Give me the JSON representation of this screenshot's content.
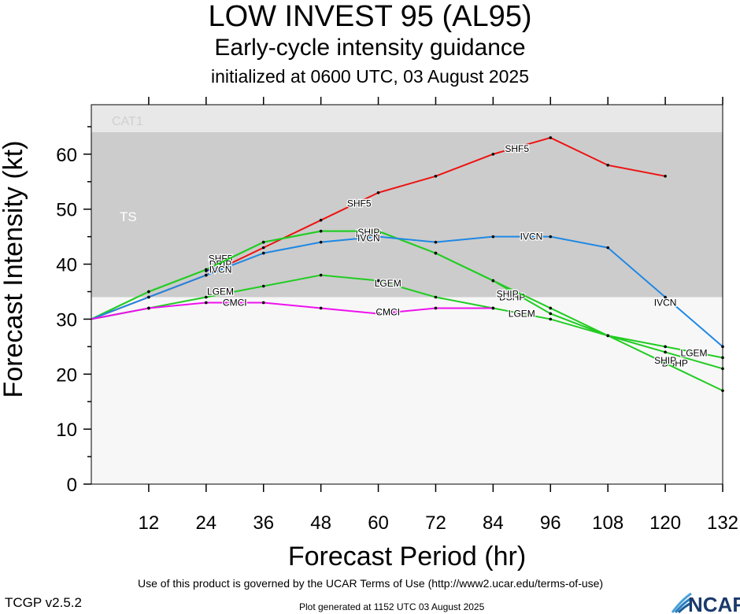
{
  "header": {
    "title": "LOW INVEST 95 (AL95)",
    "subtitle": "Early-cycle intensity guidance",
    "init": "initialized at 0600 UTC, 03 August 2025"
  },
  "footer": {
    "terms": "Use of this product is governed by the UCAR Terms of Use (http://www2.ucar.edu/terms-of-use)",
    "version": "TCGP v2.5.2",
    "generated": "Plot generated at 1152 UTC   03 August 2025",
    "logo_text": "NCAR"
  },
  "chart_data": {
    "type": "line",
    "xlabel": "Forecast Period (hr)",
    "ylabel": "Forecast Intensity (kt)",
    "xlim": [
      0,
      132
    ],
    "ylim": [
      0,
      69
    ],
    "x_ticks": [
      12,
      24,
      36,
      48,
      60,
      72,
      84,
      96,
      108,
      120,
      132
    ],
    "y_ticks": [
      0,
      10,
      20,
      30,
      40,
      50,
      60
    ],
    "bands": [
      {
        "label": "TS",
        "from": 34,
        "to": 64,
        "color": "#cccccc"
      },
      {
        "label": "CAT1",
        "from": 64,
        "to": 69,
        "color": "#e8e8e8"
      }
    ],
    "series": [
      {
        "name": "SHF5",
        "color": "#ee1111",
        "x": [
          0,
          12,
          24,
          36,
          48,
          60,
          72,
          84,
          96,
          108,
          120
        ],
        "y": [
          30,
          34,
          38,
          43,
          48,
          53,
          56,
          60,
          63,
          58,
          56
        ],
        "labels": [
          {
            "x": 27,
            "y": 41
          },
          {
            "x": 56,
            "y": 51
          },
          {
            "x": 89,
            "y": 61
          }
        ]
      },
      {
        "name": "DRIP",
        "color": "#2020ee",
        "x": [
          24,
          27
        ],
        "y": [
          38.8,
          39.5
        ],
        "labels": [
          {
            "x": 27,
            "y": 40
          }
        ]
      },
      {
        "name": "DSHP",
        "color": "#22cc22",
        "x": [
          0,
          12,
          24,
          36,
          48,
          60,
          72,
          84,
          96,
          108,
          120,
          132
        ],
        "y": [
          30,
          35,
          39,
          44,
          46,
          46,
          42,
          37,
          31,
          27,
          24,
          21
        ],
        "labels": [
          {
            "x": 58,
            "y": 45.5
          },
          {
            "x": 88,
            "y": 34
          },
          {
            "x": 122,
            "y": 22
          }
        ]
      },
      {
        "name": "SHIP",
        "color": "#22cc22",
        "x": [
          0,
          12,
          24,
          36,
          48,
          60,
          72,
          84,
          96,
          108,
          120,
          132
        ],
        "y": [
          30,
          35,
          39,
          44,
          46,
          46,
          42,
          37,
          32,
          27,
          22,
          17
        ],
        "labels": [
          {
            "x": 58,
            "y": 45.8
          },
          {
            "x": 87,
            "y": 34.6
          },
          {
            "x": 120,
            "y": 22.5
          }
        ]
      },
      {
        "name": "IVCN",
        "color": "#1e88e5",
        "x": [
          0,
          12,
          24,
          36,
          48,
          60,
          72,
          84,
          96,
          108,
          120,
          132
        ],
        "y": [
          30,
          34,
          38,
          42,
          44,
          45,
          44,
          45,
          45,
          43,
          34,
          25
        ],
        "labels": [
          {
            "x": 27,
            "y": 39
          },
          {
            "x": 58,
            "y": 44.7
          },
          {
            "x": 92,
            "y": 45
          },
          {
            "x": 120,
            "y": 33
          }
        ]
      },
      {
        "name": "LGEM",
        "color": "#22cc22",
        "x": [
          0,
          12,
          24,
          36,
          48,
          60,
          72,
          84,
          96,
          108,
          120,
          132
        ],
        "y": [
          30,
          32,
          34,
          36,
          38,
          37,
          34,
          32,
          30,
          27,
          25,
          23
        ],
        "labels": [
          {
            "x": 27,
            "y": 35
          },
          {
            "x": 62,
            "y": 36.5
          },
          {
            "x": 90,
            "y": 31
          },
          {
            "x": 126,
            "y": 23.8
          }
        ]
      },
      {
        "name": "CMCI",
        "color": "#ee11ee",
        "x": [
          0,
          12,
          24,
          36,
          48,
          60,
          72,
          84
        ],
        "y": [
          30,
          32,
          33,
          33,
          32,
          31,
          32,
          32
        ],
        "labels": [
          {
            "x": 30,
            "y": 33
          },
          {
            "x": 62,
            "y": 31.3
          }
        ]
      }
    ]
  }
}
